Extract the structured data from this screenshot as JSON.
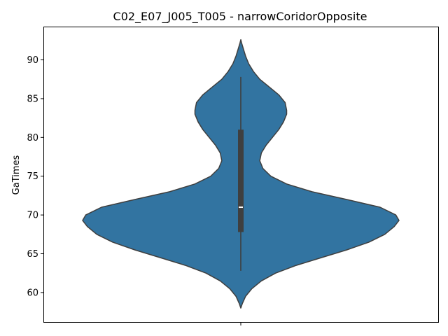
{
  "chart_data": {
    "type": "violin",
    "title": "C02_E07_J005_T005 - narrowCoridorOpposite",
    "xlabel": "",
    "ylabel": "GaTimes",
    "ylim": [
      56.2,
      94.2
    ],
    "yticks": [
      60,
      65,
      70,
      75,
      80,
      85,
      90
    ],
    "x_categories": [
      ""
    ],
    "grid": false,
    "colors": {
      "violin_fill": "#3274a1",
      "outline": "#3f3f3f",
      "box": "#3f3f3f",
      "median": "#ffffff"
    },
    "violin": {
      "min": 58.0,
      "max": 92.6,
      "whisker_low": 62.8,
      "q1": 67.8,
      "median": 71.0,
      "q3": 81.0,
      "whisker_high": 87.8,
      "density_profile": [
        [
          58.0,
          0.0
        ],
        [
          58.6,
          0.01
        ],
        [
          59.5,
          0.03
        ],
        [
          60.5,
          0.07
        ],
        [
          61.5,
          0.13
        ],
        [
          62.5,
          0.22
        ],
        [
          63.5,
          0.35
        ],
        [
          64.5,
          0.51
        ],
        [
          65.5,
          0.67
        ],
        [
          66.5,
          0.81
        ],
        [
          67.5,
          0.91
        ],
        [
          68.5,
          0.97
        ],
        [
          69.3,
          1.0
        ],
        [
          70.0,
          0.98
        ],
        [
          71.0,
          0.88
        ],
        [
          72.0,
          0.67
        ],
        [
          73.0,
          0.45
        ],
        [
          74.0,
          0.29
        ],
        [
          75.0,
          0.19
        ],
        [
          76.0,
          0.14
        ],
        [
          77.0,
          0.12
        ],
        [
          78.0,
          0.13
        ],
        [
          79.0,
          0.16
        ],
        [
          80.0,
          0.2
        ],
        [
          81.0,
          0.24
        ],
        [
          82.0,
          0.27
        ],
        [
          83.0,
          0.29
        ],
        [
          83.5,
          0.29
        ],
        [
          84.5,
          0.28
        ],
        [
          85.5,
          0.24
        ],
        [
          86.5,
          0.18
        ],
        [
          87.5,
          0.12
        ],
        [
          88.5,
          0.08
        ],
        [
          89.5,
          0.05
        ],
        [
          90.5,
          0.03
        ],
        [
          91.5,
          0.015
        ],
        [
          92.2,
          0.005
        ],
        [
          92.6,
          0.0
        ]
      ]
    }
  }
}
